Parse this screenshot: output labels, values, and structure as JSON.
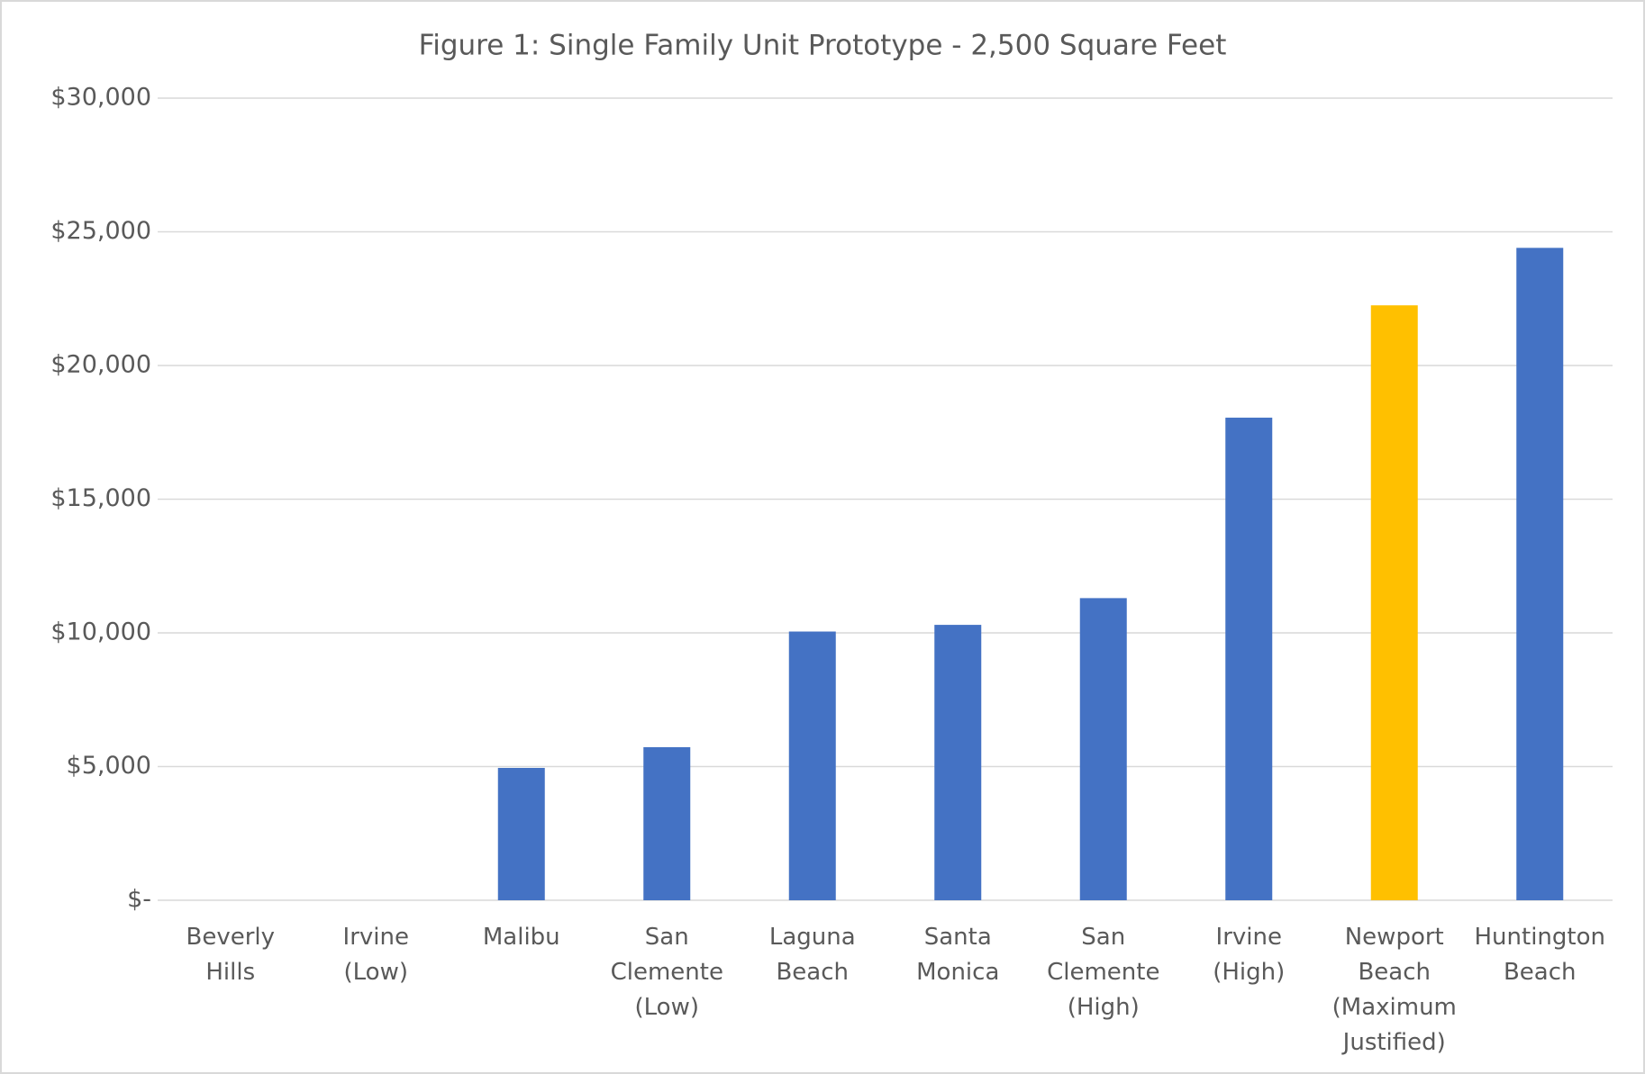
{
  "chart_data": {
    "type": "bar",
    "title": "Figure 1: Single Family Unit Prototype - 2,500 Square Feet",
    "categories": [
      "Beverly Hills",
      "Irvine (Low)",
      "Malibu",
      "San Clemente (Low)",
      "Laguna Beach",
      "Santa Monica",
      "San Clemente (High)",
      "Irvine (High)",
      "Newport Beach (Maximum Justified)",
      "Huntington Beach"
    ],
    "values": [
      0,
      0,
      4950,
      5725,
      10050,
      10300,
      11300,
      18050,
      22250,
      24400
    ],
    "colors": [
      "#4472c4",
      "#4472c4",
      "#4472c4",
      "#4472c4",
      "#4472c4",
      "#4472c4",
      "#4472c4",
      "#4472c4",
      "#ffc000",
      "#4472c4"
    ],
    "ylim": [
      0,
      30000
    ],
    "yticks": [
      {
        "value": 0,
        "label": "$-"
      },
      {
        "value": 5000,
        "label": "$5,000"
      },
      {
        "value": 10000,
        "label": "$10,000"
      },
      {
        "value": 15000,
        "label": "$15,000"
      },
      {
        "value": 20000,
        "label": "$20,000"
      },
      {
        "value": 25000,
        "label": "$25,000"
      },
      {
        "value": 30000,
        "label": "$30,000"
      }
    ],
    "grid": true
  }
}
